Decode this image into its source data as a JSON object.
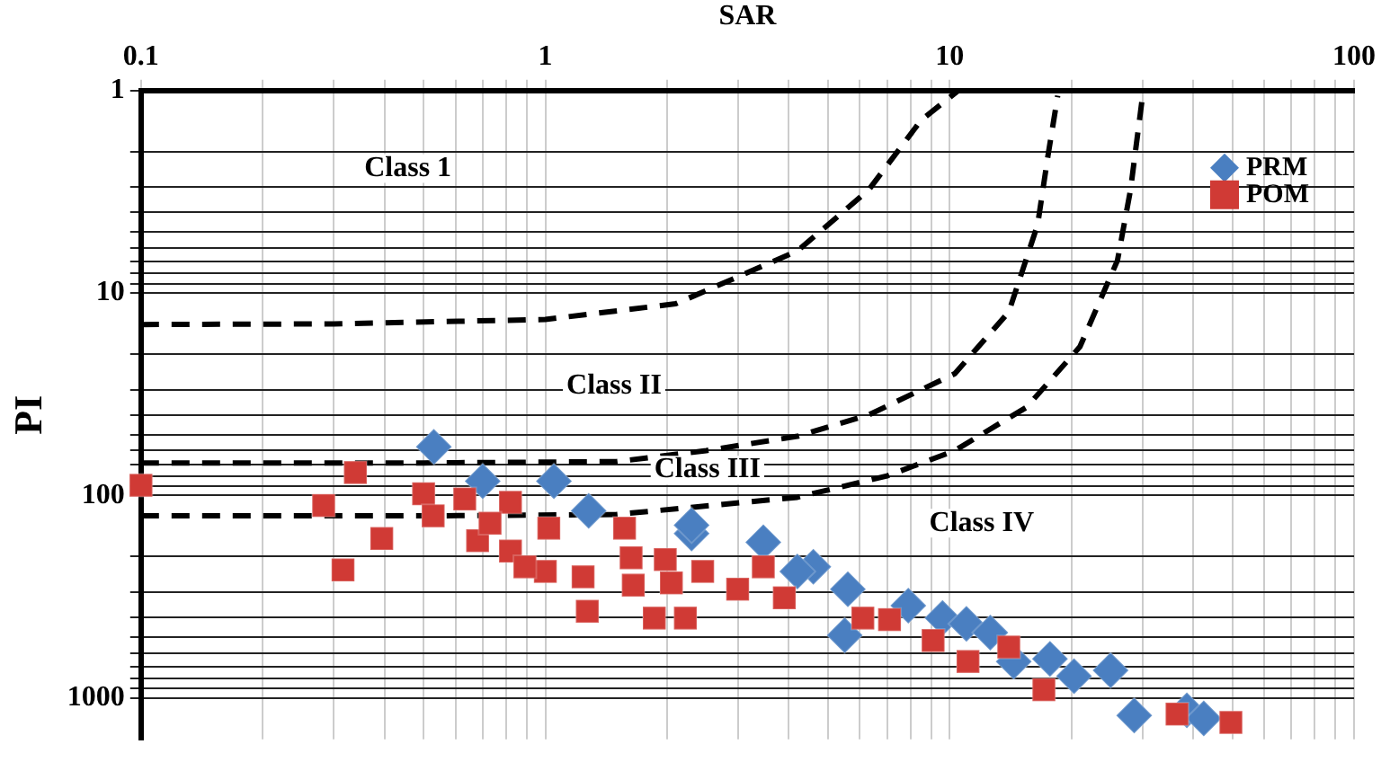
{
  "chart_data": {
    "type": "scatter",
    "xlabel": "SAR",
    "ylabel": "PI",
    "log": "xy",
    "grid": true,
    "legend": "top right",
    "xlim": [
      0.1,
      100
    ],
    "ylim": [
      1600,
      1
    ],
    "xticks": [
      0.1,
      {
        "value": 0.2,
        "label": null
      },
      {
        "value": 0.3,
        "label": null
      },
      {
        "value": 0.4,
        "label": null
      },
      {
        "value": 0.5,
        "label": null
      },
      {
        "value": 0.6,
        "label": null
      },
      {
        "value": 0.7,
        "label": null
      },
      {
        "value": 0.8,
        "label": null
      },
      {
        "value": 0.9,
        "label": null
      },
      1,
      {
        "value": 2,
        "label": null
      },
      {
        "value": 3,
        "label": null
      },
      {
        "value": 4,
        "label": null
      },
      {
        "value": 5,
        "label": null
      },
      {
        "value": 6,
        "label": null
      },
      {
        "value": 7,
        "label": null
      },
      {
        "value": 8,
        "label": null
      },
      {
        "value": 9,
        "label": null
      },
      10,
      {
        "value": 20,
        "label": null
      },
      {
        "value": 30,
        "label": null
      },
      {
        "value": 40,
        "label": null
      },
      {
        "value": 50,
        "label": null
      },
      {
        "value": 60,
        "label": null
      },
      {
        "value": 70,
        "label": null
      },
      {
        "value": 80,
        "label": null
      },
      {
        "value": 90,
        "label": null
      },
      100
    ],
    "yticks": [
      1,
      {
        "value": 2,
        "label": null
      },
      {
        "value": 3,
        "label": null
      },
      {
        "value": 4,
        "label": null
      },
      {
        "value": 5,
        "label": null
      },
      {
        "value": 6,
        "label": null
      },
      {
        "value": 7,
        "label": null
      },
      {
        "value": 8,
        "label": null
      },
      {
        "value": 9,
        "label": null
      },
      10,
      {
        "value": 20,
        "label": null
      },
      {
        "value": 30,
        "label": null
      },
      {
        "value": 40,
        "label": null
      },
      {
        "value": 50,
        "label": null
      },
      {
        "value": 60,
        "label": null
      },
      {
        "value": 70,
        "label": null
      },
      {
        "value": 80,
        "label": null
      },
      {
        "value": 90,
        "label": null
      },
      100,
      {
        "value": 200,
        "label": null
      },
      {
        "value": 300,
        "label": null
      },
      {
        "value": 400,
        "label": null
      },
      {
        "value": 500,
        "label": null
      },
      {
        "value": 600,
        "label": null
      },
      {
        "value": 700,
        "label": null
      },
      {
        "value": 800,
        "label": null
      },
      {
        "value": 900,
        "label": null
      },
      1000
    ],
    "series": [
      {
        "type": "line",
        "line_style": "dashed",
        "marker": "none",
        "color": "#000000",
        "x": [
          0.1,
          0.3,
          1,
          2.1,
          4.2,
          6.3,
          8.5,
          10.5
        ],
        "values": [
          14.3,
          14.2,
          13.5,
          11.3,
          6.2,
          3.1,
          1.4,
          1
        ]
      },
      {
        "type": "line",
        "line_style": "dashed",
        "marker": "none",
        "color": "#000000",
        "x": [
          0.1,
          0.5,
          1.5,
          2.5,
          4.2,
          6.3,
          10.3,
          14,
          16.5,
          17.5,
          18.5
        ],
        "values": [
          69,
          69,
          68,
          60,
          51,
          40,
          25,
          12.4,
          4.6,
          2.1,
          1.06
        ]
      },
      {
        "type": "line",
        "line_style": "dashed",
        "marker": "none",
        "color": "#000000",
        "x": [
          0.1,
          0.5,
          1.5,
          4.2,
          7,
          10.3,
          15.5,
          21,
          26,
          28,
          30
        ],
        "values": [
          126,
          126,
          124,
          102,
          80,
          60,
          36.6,
          18.4,
          6.9,
          3.1,
          1.06
        ]
      },
      {
        "type": "scatter",
        "name": "PRM",
        "marker": "diamond",
        "color": "#4a7fc1",
        "x": [
          0.53,
          1.05,
          0.7,
          1.28,
          2.3,
          3.46,
          4.6,
          5.6,
          5.5,
          7.9,
          9.6,
          11,
          12.6,
          14.4,
          17.7,
          20.3,
          25,
          28.6,
          38.6,
          42.5,
          2.3,
          4.2
        ],
        "values": [
          57.5,
          85,
          85,
          119,
          154,
          170,
          225,
          290,
          490,
          350,
          403,
          430,
          475,
          660,
          640,
          780,
          730,
          1220,
          1150,
          1260,
          140,
          237
        ]
      },
      {
        "type": "scatter",
        "name": "POM",
        "marker": "square",
        "color": "#d03a35",
        "x": [
          0.1,
          0.283,
          0.339,
          0.316,
          0.394,
          0.5,
          0.528,
          0.632,
          0.68,
          0.82,
          0.82,
          1.02,
          1.0,
          1.24,
          1.27,
          1.57,
          1.65,
          1.86,
          1.63,
          1.98,
          0.89,
          0.73,
          2.22,
          2.45,
          2.99,
          3.46,
          3.9,
          6.1,
          7.1,
          9.1,
          11.1,
          14,
          17.1,
          36.5,
          49.6,
          2.05
        ],
        "values": [
          89,
          112,
          77,
          233,
          163,
          98,
          126,
          104,
          167,
          108,
          188,
          145,
          237,
          252,
          373,
          145,
          277,
          403,
          203,
          207,
          225,
          137,
          403,
          237,
          290,
          225,
          320,
          403,
          410,
          520,
          660,
          560,
          910,
          1200,
          1320,
          270
        ]
      }
    ],
    "annotations": [
      "Class 1",
      "Class II",
      "Class III",
      "Class IV"
    ]
  }
}
